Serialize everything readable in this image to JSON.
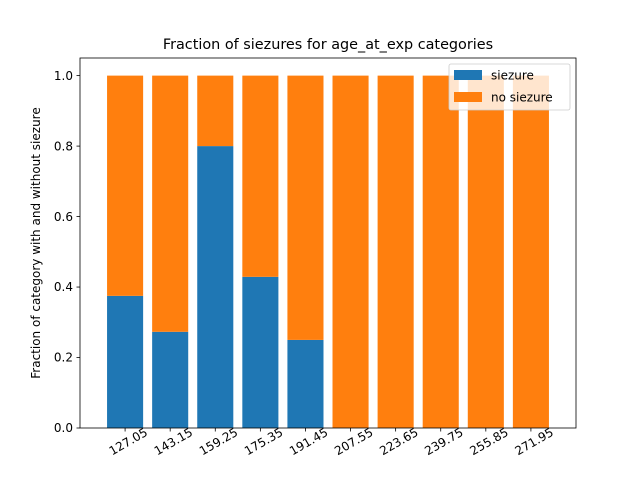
{
  "chart_data": {
    "type": "bar",
    "stacked": true,
    "title": "Fraction of siezures for age_at_exp categories",
    "xlabel": "age_at_exp",
    "ylabel": "Fraction of category with and without siezure",
    "categories": [
      "127.05",
      "143.15",
      "159.25",
      "175.35",
      "191.45",
      "207.55",
      "223.65",
      "239.75",
      "255.85",
      "271.95"
    ],
    "series": [
      {
        "name": "siezure",
        "color": "#1f77b4",
        "values": [
          0.375,
          0.273,
          0.8,
          0.429,
          0.25,
          0,
          0,
          0,
          0,
          0
        ]
      },
      {
        "name": "no siezure",
        "color": "#ff7f0e",
        "values": [
          0.625,
          0.727,
          0.2,
          0.571,
          0.75,
          1,
          1,
          1,
          1,
          1
        ]
      }
    ],
    "ylim": [
      0,
      1.05
    ],
    "yticks": [
      "0.0",
      "0.2",
      "0.4",
      "0.6",
      "0.8",
      "1.0"
    ],
    "xtick_rotation": 30,
    "grid": false,
    "legend": "upper right"
  }
}
